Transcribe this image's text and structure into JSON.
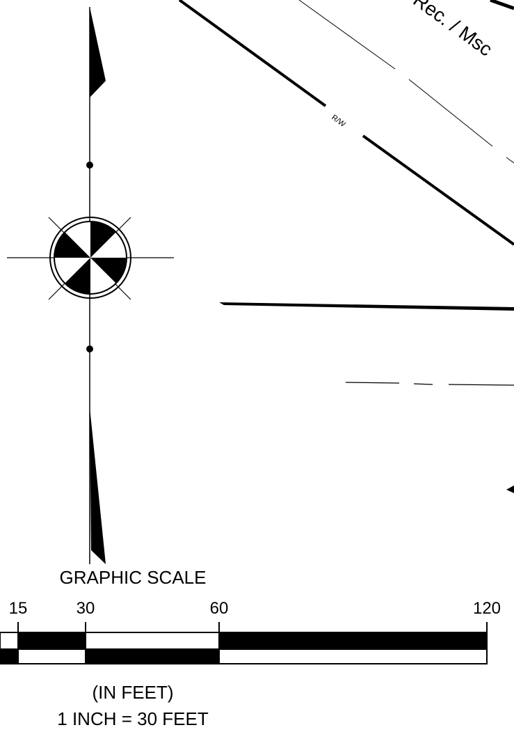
{
  "annotations": {
    "row_label": "R/W",
    "record_label": "Rec. / Msc"
  },
  "scale": {
    "title": "GRAPHIC SCALE",
    "ticks": [
      "15",
      "30",
      "60",
      "120"
    ],
    "units": "(IN FEET)",
    "ratio": "1 INCH = 30 FEET"
  }
}
